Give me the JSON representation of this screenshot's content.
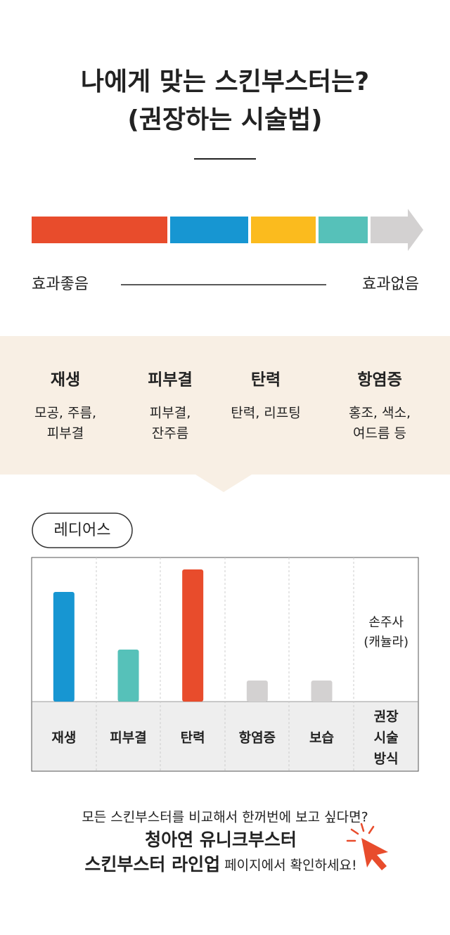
{
  "header": {
    "title_lines": [
      "나에게 맞는 스킨부스터는?",
      "(권장하는 시술법)"
    ]
  },
  "spectrum": {
    "colors": [
      "#e84c2c",
      "#1796d2",
      "#fbbb1e",
      "#56c1b9",
      "#d3d1d1"
    ],
    "left_label": "효과좋음",
    "right_label": "효과없음"
  },
  "effects": [
    {
      "name": "재생",
      "lines": [
        "모공, 주름,",
        "피부결"
      ]
    },
    {
      "name": "피부결",
      "lines": [
        "피부결,",
        "잔주름"
      ]
    },
    {
      "name": "탄력",
      "lines": [
        "탄력, 리프팅"
      ]
    },
    {
      "name": "항염증",
      "lines": [
        "홍조, 색소,",
        "여드름 등"
      ]
    }
  ],
  "chart_data": {
    "type": "bar",
    "title": "레디어스",
    "categories": [
      "재생",
      "피부결",
      "탄력",
      "항염증",
      "보습"
    ],
    "values": [
      156,
      74,
      188,
      30,
      30
    ],
    "colors": [
      "#1796d2",
      "#56c1b9",
      "#e84c2c",
      "#d3d1d1",
      "#d3d1d1"
    ],
    "ylim": [
      0,
      205
    ],
    "method_header": [
      "권장",
      "시술",
      "방식"
    ],
    "method": [
      "손주사",
      "(캐뉼라)"
    ]
  },
  "footer": {
    "line1": "모든 스킨부스터를 비교해서 한꺼번에 보고 싶다면?",
    "line2": "청아연 유니크부스터",
    "line3_bold": "스킨부스터 라인업",
    "line3_rest": " 페이지에서 확인하세요!"
  }
}
